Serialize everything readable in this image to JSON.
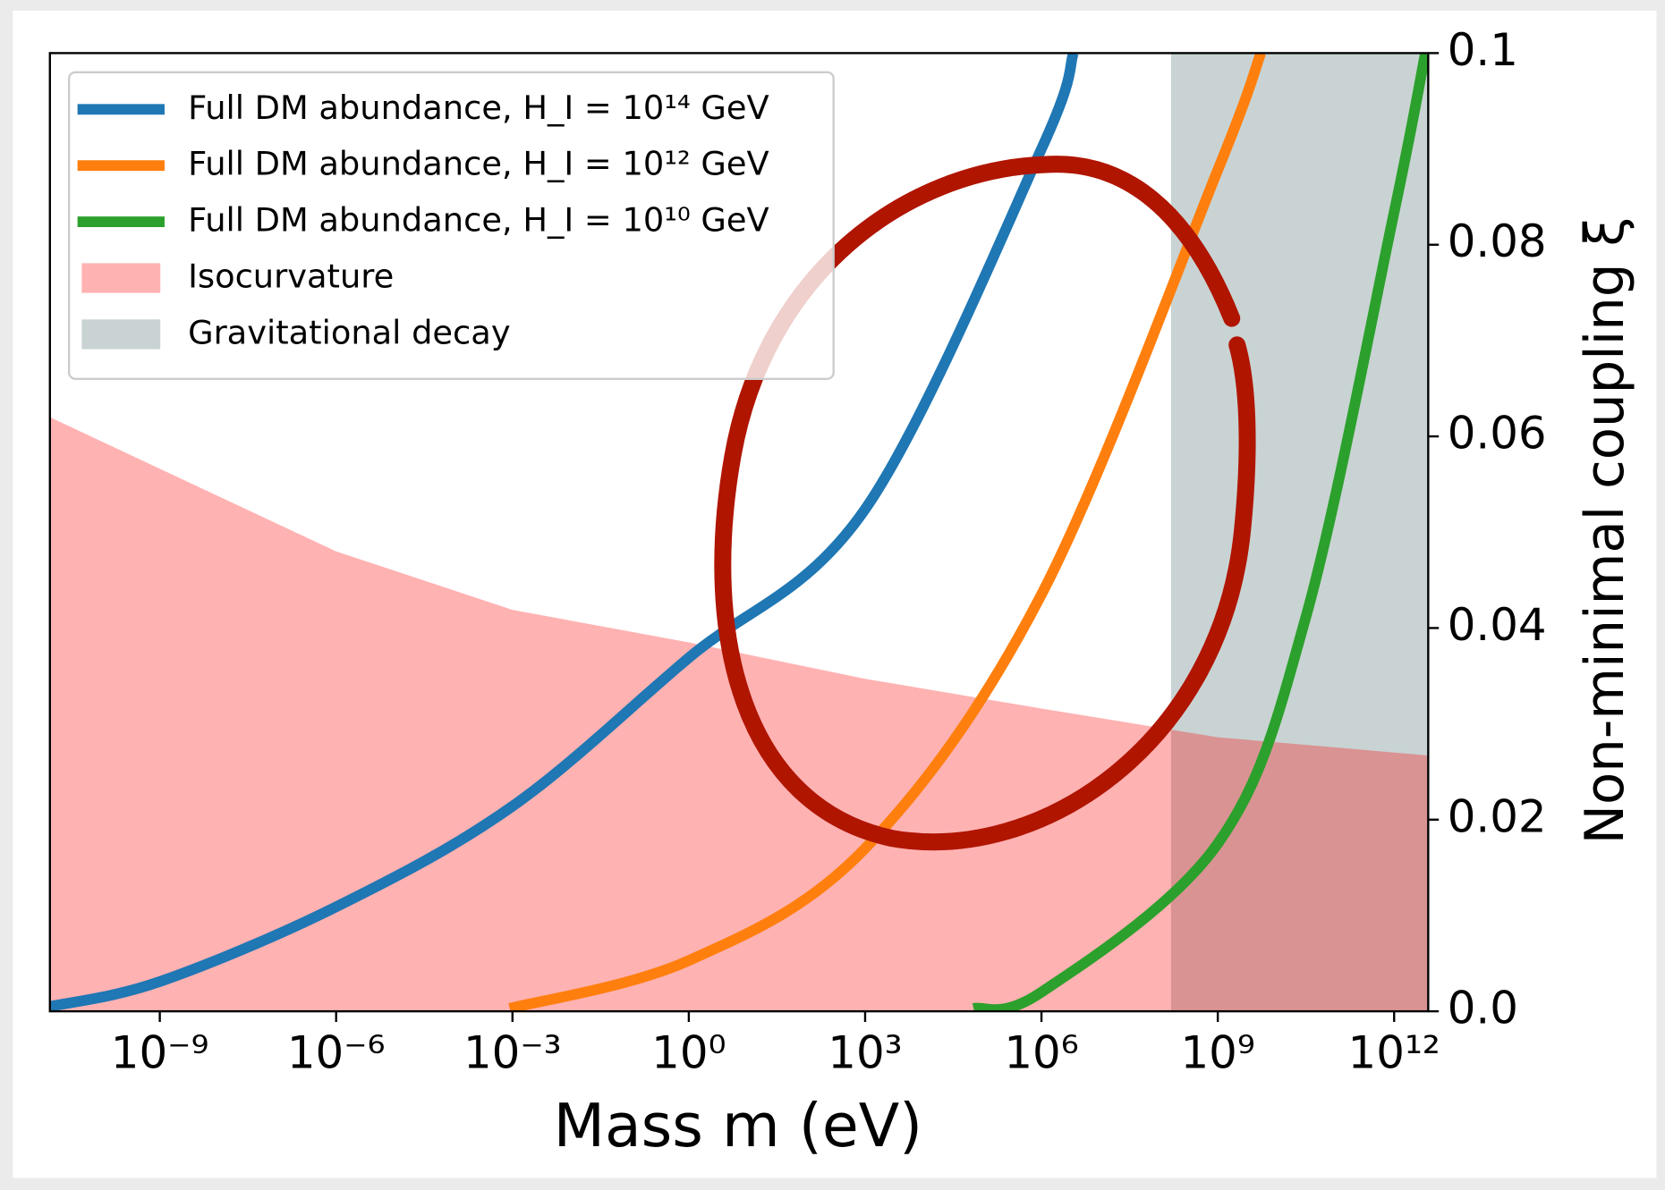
{
  "chart_data": {
    "type": "line",
    "xlabel": "Mass m (eV)",
    "ylabel": "Non-minimal coupling ξ",
    "xscale": "log",
    "xlim": [
      1.35e-11,
      3800000000000.0
    ],
    "ylim": [
      0,
      0.1
    ],
    "xticks": [
      {
        "value": 1e-09,
        "label": "10⁻⁹"
      },
      {
        "value": 1e-06,
        "label": "10⁻⁶"
      },
      {
        "value": 0.001,
        "label": "10⁻³"
      },
      {
        "value": 1,
        "label": "10⁰"
      },
      {
        "value": 1000.0,
        "label": "10³"
      },
      {
        "value": 1000000.0,
        "label": "10⁶"
      },
      {
        "value": 1000000000.0,
        "label": "10⁹"
      },
      {
        "value": 1000000000000.0,
        "label": "10¹²"
      }
    ],
    "yticks": [
      {
        "value": 0,
        "label": "0.0"
      },
      0.02,
      0.04,
      0.06,
      0.08,
      0.1
    ],
    "yaxis_side": "right",
    "legend": "upper left",
    "series": [
      {
        "name": "Full DM abundance, H_I = 10¹⁴ GeV",
        "color": "#1f77b4",
        "x": [
          1.35e-11,
          1e-09,
          1e-06,
          0.001,
          1,
          1000.0,
          1000000.0,
          3500000.0
        ],
        "values": [
          0.0005,
          0.0031,
          0.0109,
          0.0214,
          0.0369,
          0.0524,
          0.09,
          0.1
        ]
      },
      {
        "name": "Full DM abundance, H_I = 10¹² GeV",
        "color": "#ff7f0e",
        "x": [
          0.0009,
          1,
          1000.0,
          1000000.0,
          1000000000.0,
          5400000000.0
        ],
        "values": [
          0.0003,
          0.0053,
          0.017,
          0.0435,
          0.0878,
          0.1
        ]
      },
      {
        "name": "Full DM abundance, H_I = 10¹⁰ GeV",
        "color": "#2ca02c",
        "x": [
          70000.0,
          1000000.0,
          1000000000.0,
          32000000000.0,
          1000000000000.0,
          3400000000000.0
        ],
        "values": [
          0.0003,
          0.002,
          0.0175,
          0.0413,
          0.0834,
          0.1
        ]
      }
    ],
    "regions": [
      {
        "name": "Isocurvature",
        "color": "#ff0000",
        "opacity": 0.3,
        "x": [
          1.35e-11,
          1e-06,
          0.001,
          1,
          1000.0,
          1000000.0,
          1000000000.0,
          3800000000000.0
        ],
        "values": [
          0.062,
          0.048,
          0.0419,
          0.0385,
          0.0347,
          0.0316,
          0.0286,
          0.0267
        ]
      },
      {
        "name": "Gravitational decay",
        "color": "#c9d3d3",
        "opacity": 1,
        "xmin": 160000000.0
      }
    ]
  }
}
